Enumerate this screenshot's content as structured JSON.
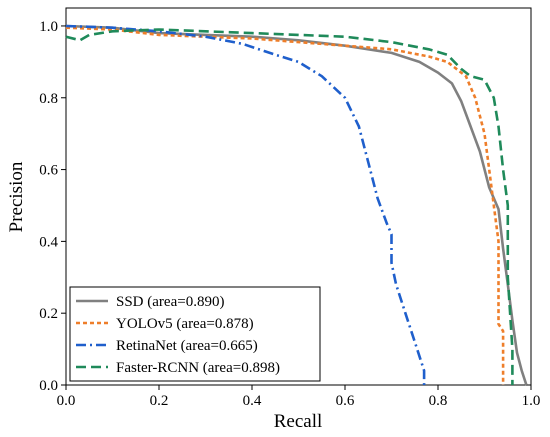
{
  "chart_data": {
    "type": "line",
    "title": "",
    "xlabel": "Recall",
    "ylabel": "Precision",
    "xlim": [
      0.0,
      1.0
    ],
    "ylim": [
      0.0,
      1.05
    ],
    "xticks": [
      "0.0",
      "0.2",
      "0.4",
      "0.6",
      "0.8",
      "1.0"
    ],
    "yticks": [
      "0.0",
      "0.2",
      "0.4",
      "0.6",
      "0.8",
      "1.0"
    ],
    "grid": false,
    "legend_position": "bottom-left",
    "series": [
      {
        "name": "SSD (area=0.890)",
        "color": "#808080",
        "style": "solid",
        "points": [
          [
            0.0,
            1.0
          ],
          [
            0.1,
            0.995
          ],
          [
            0.2,
            0.98
          ],
          [
            0.3,
            0.975
          ],
          [
            0.4,
            0.97
          ],
          [
            0.5,
            0.96
          ],
          [
            0.6,
            0.945
          ],
          [
            0.7,
            0.925
          ],
          [
            0.76,
            0.9
          ],
          [
            0.8,
            0.87
          ],
          [
            0.83,
            0.84
          ],
          [
            0.85,
            0.79
          ],
          [
            0.87,
            0.72
          ],
          [
            0.89,
            0.65
          ],
          [
            0.91,
            0.55
          ],
          [
            0.93,
            0.49
          ],
          [
            0.94,
            0.38
          ],
          [
            0.95,
            0.28
          ],
          [
            0.96,
            0.18
          ],
          [
            0.97,
            0.09
          ],
          [
            0.98,
            0.04
          ],
          [
            0.99,
            0.0
          ]
        ]
      },
      {
        "name": "YOLOv5 (area=0.878)",
        "color": "#ee7e2a",
        "style": "dotted",
        "points": [
          [
            0.0,
            0.995
          ],
          [
            0.1,
            0.99
          ],
          [
            0.2,
            0.975
          ],
          [
            0.3,
            0.97
          ],
          [
            0.4,
            0.965
          ],
          [
            0.5,
            0.955
          ],
          [
            0.6,
            0.945
          ],
          [
            0.7,
            0.935
          ],
          [
            0.78,
            0.915
          ],
          [
            0.82,
            0.9
          ],
          [
            0.86,
            0.86
          ],
          [
            0.88,
            0.8
          ],
          [
            0.9,
            0.7
          ],
          [
            0.91,
            0.6
          ],
          [
            0.92,
            0.5
          ],
          [
            0.93,
            0.4
          ],
          [
            0.93,
            0.3
          ],
          [
            0.93,
            0.17
          ],
          [
            0.94,
            0.15
          ],
          [
            0.94,
            0.0
          ]
        ]
      },
      {
        "name": "RetinaNet (area=0.665)",
        "color": "#1f5fcc",
        "style": "dashdot",
        "points": [
          [
            0.0,
            1.0
          ],
          [
            0.1,
            0.995
          ],
          [
            0.2,
            0.985
          ],
          [
            0.3,
            0.97
          ],
          [
            0.38,
            0.95
          ],
          [
            0.45,
            0.92
          ],
          [
            0.5,
            0.9
          ],
          [
            0.55,
            0.86
          ],
          [
            0.6,
            0.8
          ],
          [
            0.63,
            0.72
          ],
          [
            0.65,
            0.62
          ],
          [
            0.67,
            0.52
          ],
          [
            0.69,
            0.45
          ],
          [
            0.7,
            0.42
          ],
          [
            0.7,
            0.34
          ],
          [
            0.71,
            0.28
          ],
          [
            0.73,
            0.2
          ],
          [
            0.75,
            0.12
          ],
          [
            0.77,
            0.04
          ],
          [
            0.77,
            0.0
          ]
        ]
      },
      {
        "name": "Faster-RCNN (area=0.898)",
        "color": "#1f8a5a",
        "style": "dashed",
        "points": [
          [
            0.0,
            0.97
          ],
          [
            0.03,
            0.96
          ],
          [
            0.05,
            0.975
          ],
          [
            0.1,
            0.985
          ],
          [
            0.2,
            0.99
          ],
          [
            0.3,
            0.985
          ],
          [
            0.4,
            0.98
          ],
          [
            0.5,
            0.975
          ],
          [
            0.6,
            0.97
          ],
          [
            0.7,
            0.955
          ],
          [
            0.78,
            0.935
          ],
          [
            0.82,
            0.92
          ],
          [
            0.85,
            0.88
          ],
          [
            0.87,
            0.86
          ],
          [
            0.9,
            0.85
          ],
          [
            0.92,
            0.8
          ],
          [
            0.93,
            0.72
          ],
          [
            0.94,
            0.6
          ],
          [
            0.95,
            0.5
          ],
          [
            0.95,
            0.3
          ],
          [
            0.96,
            0.1
          ],
          [
            0.96,
            0.0
          ]
        ]
      }
    ]
  }
}
